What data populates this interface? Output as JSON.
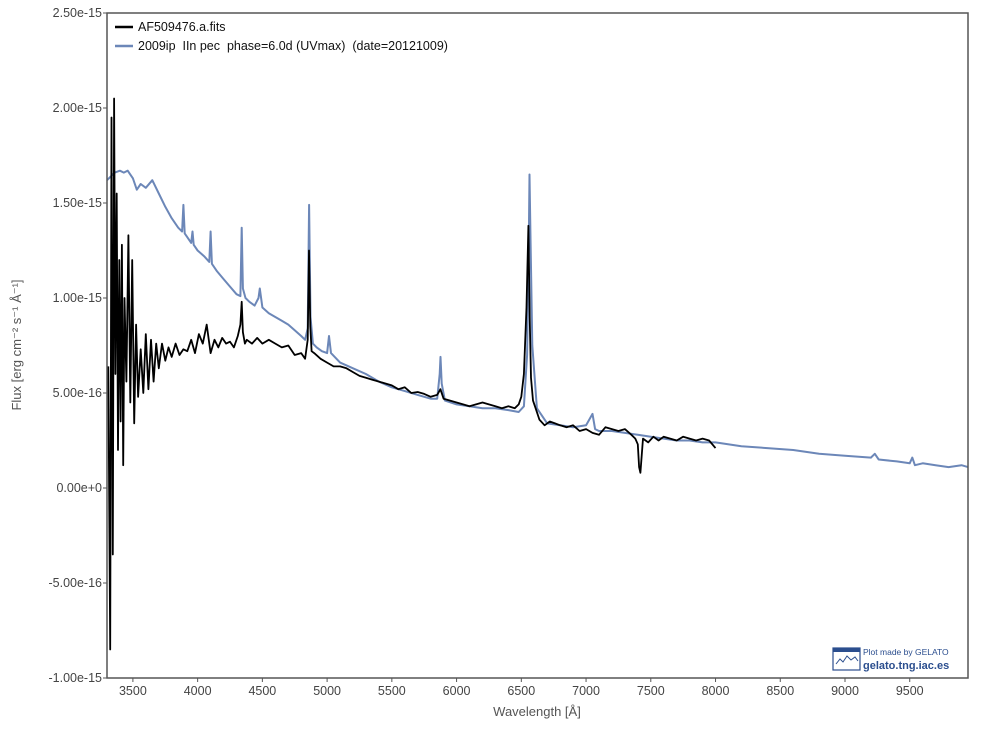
{
  "chart_data": {
    "type": "line",
    "xlabel": "Wavelength [Å]",
    "ylabel": "Flux [erg cm⁻² s⁻¹ Å⁻¹]",
    "xlim": [
      3300,
      9950
    ],
    "ylim": [
      -1e-15,
      2.5e-15
    ],
    "xticks": [
      3500,
      4000,
      4500,
      5000,
      5500,
      6000,
      6500,
      7000,
      7500,
      8000,
      8500,
      9000,
      9500
    ],
    "yticks": [
      {
        "value": 2.5e-15,
        "label": "2.50e-15"
      },
      {
        "value": 2e-15,
        "label": "2.00e-15"
      },
      {
        "value": 1.5e-15,
        "label": "1.50e-15"
      },
      {
        "value": 1e-15,
        "label": "1.00e-15"
      },
      {
        "value": 5e-16,
        "label": "5.00e-16"
      },
      {
        "value": 0,
        "label": "0.00e+0"
      },
      {
        "value": -5e-16,
        "label": "-5.00e-16"
      },
      {
        "value": -1e-15,
        "label": "-1.00e-15"
      }
    ],
    "grid": false,
    "legend_position": "top-left",
    "series": [
      {
        "name": "AF509476.a.fits",
        "color": "#000000",
        "x": [
          3310,
          3325,
          3335,
          3345,
          3355,
          3365,
          3375,
          3385,
          3395,
          3405,
          3415,
          3425,
          3435,
          3450,
          3465,
          3480,
          3495,
          3510,
          3525,
          3540,
          3560,
          3580,
          3600,
          3620,
          3640,
          3660,
          3680,
          3700,
          3725,
          3750,
          3775,
          3800,
          3830,
          3860,
          3890,
          3920,
          3950,
          3980,
          4010,
          4040,
          4070,
          4100,
          4130,
          4160,
          4190,
          4220,
          4250,
          4280,
          4310,
          4330,
          4340,
          4350,
          4365,
          4380,
          4420,
          4460,
          4500,
          4550,
          4600,
          4650,
          4700,
          4750,
          4800,
          4830,
          4850,
          4860,
          4870,
          4880,
          4900,
          4950,
          5000,
          5050,
          5100,
          5150,
          5200,
          5250,
          5300,
          5350,
          5400,
          5450,
          5500,
          5550,
          5600,
          5650,
          5700,
          5750,
          5800,
          5850,
          5875,
          5900,
          5950,
          6000,
          6050,
          6100,
          6150,
          6200,
          6250,
          6300,
          6350,
          6400,
          6450,
          6480,
          6500,
          6520,
          6540,
          6555,
          6565,
          6575,
          6590,
          6610,
          6640,
          6680,
          6720,
          6760,
          6800,
          6850,
          6900,
          6950,
          7000,
          7050,
          7100,
          7150,
          7200,
          7250,
          7300,
          7350,
          7380,
          7400,
          7410,
          7420,
          7440,
          7480,
          7520,
          7560,
          7600,
          7650,
          7700,
          7750,
          7800,
          7850,
          7900,
          7950,
          8000
        ],
        "y": [
          6.4e-16,
          -8.5e-16,
          1.95e-15,
          -3.5e-16,
          2.05e-15,
          6e-16,
          1.55e-15,
          2e-16,
          1.2e-15,
          3.5e-16,
          1.28e-15,
          1.2e-16,
          1e-15,
          5.6e-16,
          1.33e-15,
          4.5e-16,
          1.2e-15,
          3.4e-16,
          8.6e-16,
          4.8e-16,
          7.3e-16,
          5e-16,
          8.1e-16,
          5.2e-16,
          7.8e-16,
          5.6e-16,
          7.6e-16,
          6.3e-16,
          7.6e-16,
          6.7e-16,
          7.4e-16,
          6.9e-16,
          7.6e-16,
          7e-16,
          7.3e-16,
          7.2e-16,
          7.8e-16,
          7.1e-16,
          8.1e-16,
          7.6e-16,
          8.6e-16,
          7.1e-16,
          7.8e-16,
          7.4e-16,
          7.9e-16,
          7.6e-16,
          7.7e-16,
          7.4e-16,
          8e-16,
          8.6e-16,
          9.8e-16,
          8.2e-16,
          7.6e-16,
          7.8e-16,
          7.6e-16,
          7.9e-16,
          7.6e-16,
          7.8e-16,
          7.6e-16,
          7.4e-16,
          7.5e-16,
          7e-16,
          7.1e-16,
          6.8e-16,
          7.8e-16,
          1.25e-15,
          8.5e-16,
          7.2e-16,
          7.1e-16,
          6.8e-16,
          6.6e-16,
          6.4e-16,
          6.4e-16,
          6.3e-16,
          6.1e-16,
          5.9e-16,
          5.8e-16,
          5.7e-16,
          5.6e-16,
          5.5e-16,
          5.4e-16,
          5.2e-16,
          5.3e-16,
          5e-16,
          5.05e-16,
          4.95e-16,
          4.8e-16,
          4.9e-16,
          5.2e-16,
          4.7e-16,
          4.6e-16,
          4.5e-16,
          4.4e-16,
          4.3e-16,
          4.4e-16,
          4.5e-16,
          4.4e-16,
          4.3e-16,
          4.2e-16,
          4.3e-16,
          4.2e-16,
          4.4e-16,
          4.8e-16,
          6e-16,
          9.5e-16,
          1.38e-15,
          9e-16,
          5.8e-16,
          4.6e-16,
          4.2e-16,
          3.6e-16,
          3.3e-16,
          3.5e-16,
          3.4e-16,
          3.3e-16,
          3.2e-16,
          3.3e-16,
          3e-16,
          3.1e-16,
          2.9e-16,
          2.8e-16,
          3.2e-16,
          3.1e-16,
          3e-16,
          3.1e-16,
          2.8e-16,
          2.6e-16,
          2.3e-16,
          1.1e-16,
          8e-17,
          2.6e-16,
          2.4e-16,
          2.7e-16,
          2.5e-16,
          2.7e-16,
          2.6e-16,
          2.5e-16,
          2.7e-16,
          2.6e-16,
          2.5e-16,
          2.6e-16,
          2.5e-16,
          2.1e-16
        ]
      },
      {
        "name": "2009ip  IIn pec  phase=6.0d (UVmax)  (date=20121009)",
        "color": "#6c87b8",
        "x": [
          3300,
          3330,
          3360,
          3400,
          3430,
          3460,
          3500,
          3530,
          3560,
          3600,
          3650,
          3700,
          3750,
          3800,
          3850,
          3880,
          3890,
          3900,
          3920,
          3950,
          3960,
          3970,
          4000,
          4050,
          4090,
          4100,
          4110,
          4150,
          4200,
          4250,
          4300,
          4330,
          4340,
          4350,
          4370,
          4400,
          4440,
          4470,
          4480,
          4500,
          4550,
          4600,
          4650,
          4700,
          4750,
          4800,
          4830,
          4850,
          4861,
          4872,
          4890,
          4920,
          4960,
          5000,
          5015,
          5030,
          5100,
          5200,
          5300,
          5400,
          5500,
          5600,
          5700,
          5800,
          5850,
          5870,
          5876,
          5885,
          5910,
          6000,
          6100,
          6200,
          6300,
          6400,
          6480,
          6520,
          6545,
          6558,
          6563,
          6570,
          6585,
          6620,
          6700,
          6800,
          6900,
          7000,
          7050,
          7070,
          7100,
          7200,
          7300,
          7400,
          7500,
          7600,
          7700,
          7800,
          7900,
          8000,
          8200,
          8400,
          8600,
          8800,
          9000,
          9200,
          9230,
          9260,
          9400,
          9500,
          9520,
          9540,
          9600,
          9700,
          9800,
          9900,
          9950
        ],
        "y": [
          1.62e-15,
          1.64e-15,
          1.66e-15,
          1.67e-15,
          1.66e-15,
          1.67e-15,
          1.63e-15,
          1.57e-15,
          1.6e-15,
          1.58e-15,
          1.62e-15,
          1.55e-15,
          1.48e-15,
          1.42e-15,
          1.37e-15,
          1.35e-15,
          1.49e-15,
          1.34e-15,
          1.32e-15,
          1.29e-15,
          1.35e-15,
          1.28e-15,
          1.25e-15,
          1.22e-15,
          1.19e-15,
          1.35e-15,
          1.18e-15,
          1.14e-15,
          1.1e-15,
          1.06e-15,
          1.02e-15,
          1.01e-15,
          1.37e-15,
          1.05e-15,
          1e-15,
          9.8e-16,
          9.6e-16,
          1e-15,
          1.05e-15,
          9.5e-16,
          9.2e-16,
          9e-16,
          8.8e-16,
          8.6e-16,
          8.3e-16,
          8e-16,
          7.8e-16,
          8.4e-16,
          1.49e-15,
          9e-16,
          7.6e-16,
          7.4e-16,
          7.2e-16,
          7.1e-16,
          8e-16,
          7.1e-16,
          6.6e-16,
          6.3e-16,
          6e-16,
          5.6e-16,
          5.3e-16,
          5.1e-16,
          4.9e-16,
          4.7e-16,
          4.7e-16,
          6e-16,
          6.9e-16,
          5.5e-16,
          4.6e-16,
          4.4e-16,
          4.3e-16,
          4.2e-16,
          4.2e-16,
          4.1e-16,
          4e-16,
          4.3e-16,
          7e-16,
          1.3e-15,
          1.65e-15,
          1.35e-15,
          7.5e-16,
          4.2e-16,
          3.4e-16,
          3.3e-16,
          3.2e-16,
          3.3e-16,
          3.9e-16,
          3.1e-16,
          3e-16,
          3e-16,
          2.9e-16,
          2.8e-16,
          2.7e-16,
          2.6e-16,
          2.5e-16,
          2.5e-16,
          2.4e-16,
          2.4e-16,
          2.2e-16,
          2.1e-16,
          2e-16,
          1.8e-16,
          1.7e-16,
          1.6e-16,
          1.8e-16,
          1.5e-16,
          1.4e-16,
          1.3e-16,
          1.6e-16,
          1.2e-16,
          1.3e-16,
          1.2e-16,
          1.1e-16,
          1.2e-16,
          1.1e-16
        ]
      }
    ]
  },
  "credit": {
    "line1": "Plot made by GELATO",
    "line2": "gelato.tng.iac.es"
  }
}
